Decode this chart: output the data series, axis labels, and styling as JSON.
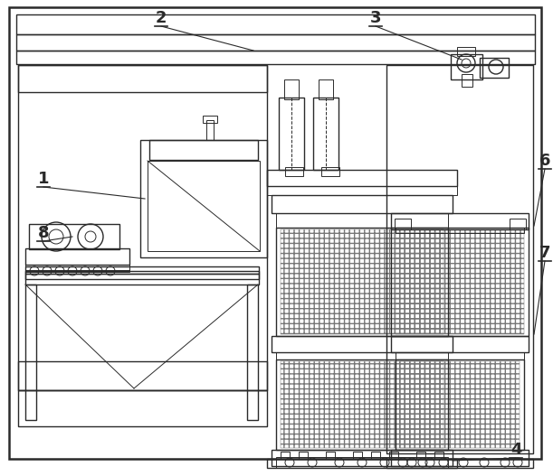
{
  "bg_color": "#ffffff",
  "line_color": "#2a2a2a",
  "lw_thin": 0.7,
  "lw_med": 1.0,
  "lw_thick": 1.8,
  "label_fontsize": 13,
  "label_fontweight": "bold"
}
